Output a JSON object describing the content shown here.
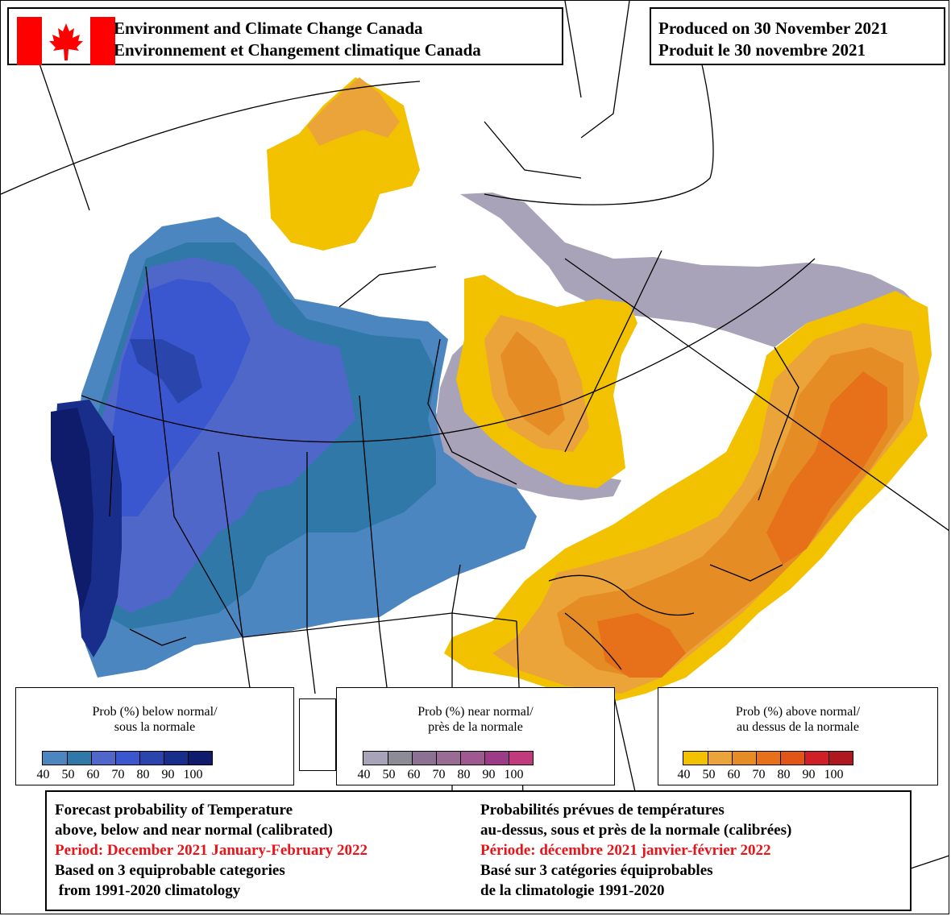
{
  "header": {
    "agency_en": "Environment and Climate Change Canada",
    "agency_fr": "Environnement et Changement climatique Canada",
    "produced_en": "Produced on 30 November 2021",
    "produced_fr": "Produit le 30 novembre 2021"
  },
  "map": {
    "region": "Canada",
    "categories": {
      "below_normal_color": "#3b63d4",
      "near_normal_color": "#a49bb8",
      "above_normal_color": "#e4871f"
    }
  },
  "legends": [
    {
      "title_line1": "Prob (%) below normal/",
      "title_line2": "sous la normale",
      "colors": [
        "#4b86c0",
        "#2f78a8",
        "#4f67c9",
        "#3a57d0",
        "#2a46ad",
        "#182e8a",
        "#0e1c6b"
      ],
      "ticks": [
        "40",
        "50",
        "60",
        "70",
        "80",
        "90",
        "100"
      ]
    },
    {
      "title_line1": "Prob (%) near normal/",
      "title_line2": "près de la normale",
      "colors": [
        "#a8a3b8",
        "#8e8b98",
        "#8c7195",
        "#9a6c95",
        "#a05890",
        "#9c3c86",
        "#c03a7d"
      ],
      "ticks": [
        "40",
        "50",
        "60",
        "70",
        "80",
        "90",
        "100"
      ]
    },
    {
      "title_line1": "Prob (%) above normal/",
      "title_line2": "au dessus de la normale",
      "colors": [
        "#f2c200",
        "#eba43a",
        "#e58d24",
        "#e6711a",
        "#e25518",
        "#d11f28",
        "#b01820"
      ],
      "ticks": [
        "40",
        "50",
        "60",
        "70",
        "80",
        "90",
        "100"
      ]
    }
  ],
  "footer": {
    "en_line1": "Forecast probability of Temperature",
    "en_line2": "above, below and near normal (calibrated)",
    "en_period": "Period: December 2021 January-February 2022",
    "en_line4": "Based on 3 equiprobable categories",
    "en_line5": " from 1991-2020 climatology",
    "fr_line1": "Probabilités prévues de températures",
    "fr_line2": "au-dessus, sous et près de la normale (calibrées)",
    "fr_period": "Période: décembre 2021 janvier-février 2022",
    "fr_line4": "Basé sur 3 catégories équiprobables",
    "fr_line5": "de la climatologie 1991-2020"
  }
}
